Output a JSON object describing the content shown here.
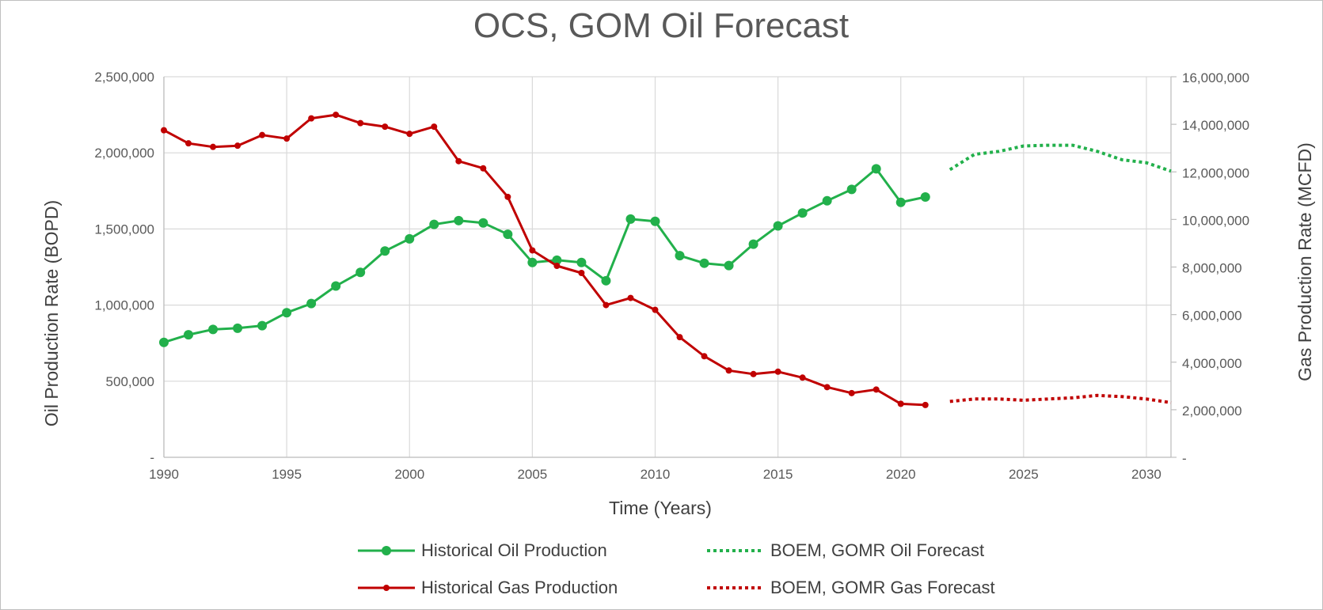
{
  "chart_data": {
    "type": "line",
    "title": "OCS, GOM Oil Forecast",
    "xlabel": "Time (Years)",
    "ylabel": "Oil Production Rate (BOPD)",
    "y2label": "Gas Production Rate (MCFD)",
    "xlim": [
      1990,
      2031
    ],
    "ylim": [
      0,
      2500000
    ],
    "y2lim": [
      0,
      16000000
    ],
    "x_ticks": [
      "1990",
      "1995",
      "2000",
      "2005",
      "2010",
      "2015",
      "2020",
      "2025",
      "2030"
    ],
    "y_ticks": [
      "-",
      "500,000",
      "1,000,000",
      "1,500,000",
      "2,000,000",
      "2,500,000"
    ],
    "y2_ticks": [
      "-",
      "2,000,000",
      "4,000,000",
      "6,000,000",
      "8,000,000",
      "10,000,000",
      "12,000,000",
      "14,000,000",
      "16,000,000"
    ],
    "grid": true,
    "legend_position": "bottom",
    "series": [
      {
        "name": "Historical Oil Production",
        "axis": "left",
        "style": "solid-marker",
        "color": "#22b04b",
        "x": [
          1990,
          1991,
          1992,
          1993,
          1994,
          1995,
          1996,
          1997,
          1998,
          1999,
          2000,
          2001,
          2002,
          2003,
          2004,
          2005,
          2006,
          2007,
          2008,
          2009,
          2010,
          2011,
          2012,
          2013,
          2014,
          2015,
          2016,
          2017,
          2018,
          2019,
          2020,
          2021
        ],
        "values": [
          755000,
          805000,
          840000,
          848000,
          865000,
          950000,
          1010000,
          1125000,
          1215000,
          1355000,
          1435000,
          1530000,
          1555000,
          1540000,
          1465000,
          1280000,
          1295000,
          1280000,
          1160000,
          1565000,
          1550000,
          1325000,
          1275000,
          1260000,
          1400000,
          1520000,
          1605000,
          1685000,
          1760000,
          1895000,
          1675000,
          1710000
        ]
      },
      {
        "name": "BOEM, GOMR Oil Forecast",
        "axis": "left",
        "style": "dotted",
        "color": "#22b04b",
        "x": [
          2022,
          2023,
          2024,
          2025,
          2026,
          2027,
          2028,
          2029,
          2030,
          2031
        ],
        "values": [
          1890000,
          1990000,
          2010000,
          2045000,
          2050000,
          2050000,
          2010000,
          1955000,
          1935000,
          1880000
        ]
      },
      {
        "name": "Historical Gas Production",
        "axis": "right",
        "style": "solid-marker",
        "color": "#c00000",
        "x": [
          1990,
          1991,
          1992,
          1993,
          1994,
          1995,
          1996,
          1997,
          1998,
          1999,
          2000,
          2001,
          2002,
          2003,
          2004,
          2005,
          2006,
          2007,
          2008,
          2009,
          2010,
          2011,
          2012,
          2013,
          2014,
          2015,
          2016,
          2017,
          2018,
          2019,
          2020,
          2021
        ],
        "values": [
          13750000,
          13200000,
          13050000,
          13100000,
          13550000,
          13400000,
          14250000,
          14400000,
          14050000,
          13900000,
          13600000,
          13900000,
          12450000,
          12150000,
          10950000,
          8700000,
          8050000,
          7750000,
          6400000,
          6700000,
          6200000,
          5050000,
          4250000,
          3650000,
          3500000,
          3600000,
          3350000,
          2950000,
          2700000,
          2850000,
          2250000,
          2200000
        ]
      },
      {
        "name": "BOEM, GOMR Gas Forecast",
        "axis": "right",
        "style": "dotted",
        "color": "#c00000",
        "x": [
          2022,
          2023,
          2024,
          2025,
          2026,
          2027,
          2028,
          2029,
          2030,
          2031
        ],
        "values": [
          2350000,
          2450000,
          2450000,
          2400000,
          2450000,
          2500000,
          2600000,
          2550000,
          2450000,
          2300000
        ]
      }
    ]
  }
}
